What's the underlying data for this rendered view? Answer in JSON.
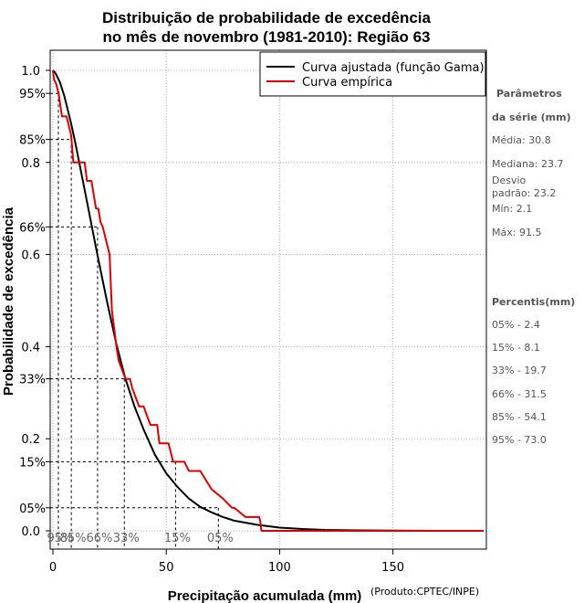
{
  "chart_data": {
    "type": "line",
    "title_line1": "Distribuição de probabilidade de excedência",
    "title_line2": "no mês de novembro (1981-2010): Região 63",
    "xlabel": "Precipitação acumulada (mm)",
    "ylabel": "Probabilidade de excedência",
    "credit": "(Produto:CPTEC/INPE)",
    "xlim": [
      0,
      190
    ],
    "ylim": [
      0,
      1
    ],
    "x_ticks": [
      0,
      50,
      100,
      150
    ],
    "x_tick_labels": [
      "0",
      "50",
      "100",
      "150"
    ],
    "y_ticks": [
      0,
      0.2,
      0.4,
      0.6,
      0.8,
      1.0
    ],
    "y_tick_labels": [
      "0.0",
      "0.2",
      "0.4",
      "0.6",
      "0.8",
      "1.0"
    ],
    "y_pct_levels": [
      0.95,
      0.85,
      0.66,
      0.33,
      0.15,
      0.05
    ],
    "y_pct_labels": [
      "95%",
      "85%",
      "66%",
      "33%",
      "15%",
      "05%"
    ],
    "x_pct_labels": [
      "95%",
      "85%",
      "66%",
      "33%",
      "15%",
      "05%"
    ],
    "legend": [
      {
        "label": "Curva ajustada (função Gama)",
        "color": "#000000"
      },
      {
        "label": "Curva empírica",
        "color": "#dd0000"
      }
    ],
    "series": [
      {
        "name": "Curva ajustada (função Gama)",
        "color": "#000000",
        "x": [
          0,
          1,
          3,
          5,
          8,
          10,
          12,
          15,
          18,
          20,
          24,
          28,
          32,
          36,
          40,
          45,
          50,
          55,
          60,
          65,
          70,
          75,
          80,
          90,
          100,
          110,
          120,
          135,
          150,
          167
        ],
        "y": [
          1.0,
          0.995,
          0.975,
          0.945,
          0.885,
          0.84,
          0.79,
          0.715,
          0.64,
          0.59,
          0.495,
          0.405,
          0.33,
          0.27,
          0.22,
          0.165,
          0.125,
          0.095,
          0.07,
          0.052,
          0.04,
          0.03,
          0.022,
          0.013,
          0.007,
          0.004,
          0.002,
          0.001,
          0.0005,
          0.0
        ]
      },
      {
        "name": "Curva empírica",
        "color": "#dd0000",
        "x": [
          0,
          0.5,
          1.5,
          2.5,
          4,
          6,
          8,
          9,
          10,
          11,
          14,
          15,
          17,
          19,
          20,
          21,
          22,
          25,
          26,
          28,
          29,
          32,
          34,
          35,
          38,
          40,
          43,
          46,
          47,
          51,
          53,
          58,
          60,
          65,
          70,
          75,
          79,
          80,
          85,
          88,
          91,
          91.5,
          92,
          190
        ],
        "y": [
          1.0,
          0.98,
          0.97,
          0.95,
          0.9,
          0.9,
          0.86,
          0.8,
          0.8,
          0.8,
          0.8,
          0.76,
          0.76,
          0.7,
          0.7,
          0.67,
          0.66,
          0.6,
          0.48,
          0.4,
          0.37,
          0.33,
          0.33,
          0.31,
          0.27,
          0.27,
          0.23,
          0.23,
          0.19,
          0.19,
          0.15,
          0.15,
          0.13,
          0.13,
          0.09,
          0.07,
          0.05,
          0.05,
          0.03,
          0.03,
          0.03,
          0.02,
          0.0,
          0.0
        ]
      }
    ],
    "percentile_markers": [
      {
        "label": "95%",
        "x": 2.4,
        "y": 0.95
      },
      {
        "label": "85%",
        "x": 8.1,
        "y": 0.85
      },
      {
        "label": "66%",
        "x": 19.7,
        "y": 0.66
      },
      {
        "label": "33%",
        "x": 31.5,
        "y": 0.33
      },
      {
        "label": "15%",
        "x": 54.1,
        "y": 0.15
      },
      {
        "label": "05%",
        "x": 73.0,
        "y": 0.05
      }
    ]
  },
  "side_panel": {
    "params_heading_1": "Parâmetros",
    "params_heading_2": "da série (mm)",
    "media": "Média: 30.8",
    "mediana": "Mediana: 23.7",
    "desvio_1": "Desvio",
    "desvio_2": "padrão: 23.2",
    "min": "Mín: 2.1",
    "max": "Máx: 91.5",
    "percentis_heading": "Percentis(mm)",
    "percentis": [
      "05% - 2.4",
      "15% - 8.1",
      "33% - 19.7",
      "66% - 31.5",
      "85% - 54.1",
      "95% - 73.0"
    ]
  }
}
